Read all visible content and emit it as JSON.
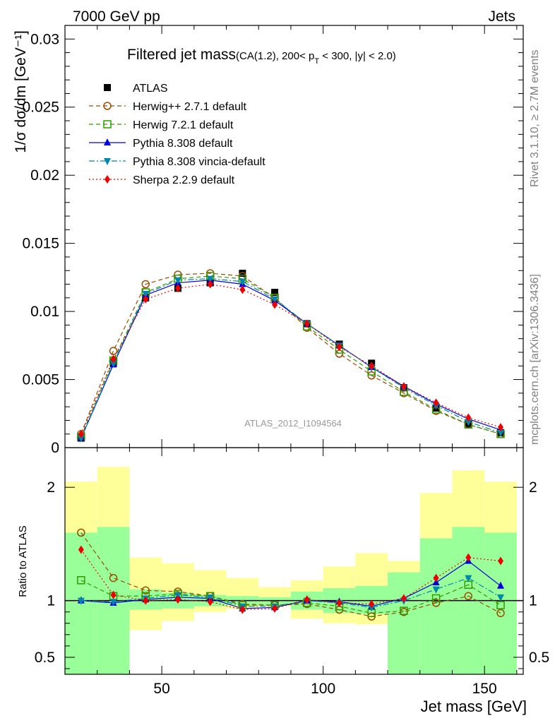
{
  "header": {
    "left": "7000 GeV pp",
    "right": "Jets"
  },
  "side_labels": {
    "rivet": "Rivet 3.1.10, ≥ 2.7M events",
    "mcplots": "mcplots.cern.ch [arXiv:1306.3436]"
  },
  "chart_data": [
    {
      "type": "scatter",
      "title_main": "Filtered jet mass",
      "title_sub_pre": "(CA(1.2), 200< p",
      "title_sub_subscript": "T",
      "title_sub_post": " < 300, |y| < 2.0)",
      "ylabel": "1/σ dσ/dm [GeV⁻¹]",
      "xlabel": "",
      "xlim": [
        20,
        162
      ],
      "ylim": [
        0,
        0.031
      ],
      "yticks": [
        {
          "v": 0,
          "label": "0"
        },
        {
          "v": 0.005,
          "label": "0.005"
        },
        {
          "v": 0.01,
          "label": "0.01"
        },
        {
          "v": 0.015,
          "label": "0.015"
        },
        {
          "v": 0.02,
          "label": "0.02"
        },
        {
          "v": 0.025,
          "label": "0.025"
        },
        {
          "v": 0.03,
          "label": "0.03"
        }
      ],
      "watermark": "ATLAS_2012_I1094564",
      "x": [
        25,
        35,
        45,
        55,
        65,
        75,
        85,
        95,
        105,
        115,
        125,
        135,
        145,
        155
      ],
      "series": [
        {
          "name": "ATLAS",
          "color": "#000000",
          "marker": "square-filled",
          "line": "none",
          "values": [
            0.0007,
            0.0062,
            0.011,
            0.0117,
            0.0121,
            0.0128,
            0.0114,
            0.0091,
            0.0076,
            0.0062,
            0.0044,
            0.0029,
            0.0017,
            0.0011
          ]
        },
        {
          "name": "Herwig++ 2.7.1 default",
          "color": "#994c00",
          "marker": "circle-open",
          "line": "dashed",
          "values": [
            0.001,
            0.0071,
            0.012,
            0.0127,
            0.0128,
            0.0126,
            0.011,
            0.0088,
            0.0069,
            0.0053,
            0.004,
            0.0027,
            0.0017,
            0.001
          ]
        },
        {
          "name": "Herwig 7.2.1 default",
          "color": "#339900",
          "marker": "square-open",
          "line": "dashed",
          "values": [
            0.0008,
            0.0064,
            0.0114,
            0.0124,
            0.0126,
            0.0124,
            0.011,
            0.0089,
            0.0072,
            0.0056,
            0.0041,
            0.0028,
            0.0017,
            0.001
          ]
        },
        {
          "name": "Pythia 8.308 default",
          "color": "#0000dd",
          "marker": "triangle-up",
          "line": "solid",
          "values": [
            0.0007,
            0.0061,
            0.0112,
            0.0121,
            0.0123,
            0.012,
            0.0108,
            0.0091,
            0.0075,
            0.0059,
            0.0045,
            0.0032,
            0.0021,
            0.0013
          ]
        },
        {
          "name": "Pythia 8.308 vincia-default",
          "color": "#0088aa",
          "marker": "triangle-down",
          "line": "dashdot",
          "values": [
            0.0007,
            0.0062,
            0.0113,
            0.0123,
            0.0124,
            0.0122,
            0.0109,
            0.0091,
            0.0075,
            0.0059,
            0.0044,
            0.0031,
            0.0019,
            0.0011
          ]
        },
        {
          "name": "Sherpa 2.2.9 default",
          "color": "#ee0000",
          "marker": "diamond",
          "line": "dotted",
          "values": [
            0.001,
            0.0065,
            0.0109,
            0.0117,
            0.012,
            0.0116,
            0.0105,
            0.0091,
            0.0074,
            0.006,
            0.0045,
            0.0033,
            0.0022,
            0.0015
          ]
        }
      ]
    },
    {
      "type": "scatter",
      "ylabel": "Ratio to ATLAS",
      "xlabel": "Jet mass [GeV]",
      "xlim": [
        20,
        162
      ],
      "ylim": [
        0.35,
        2.35
      ],
      "xticks": [
        {
          "v": 50,
          "label": "50"
        },
        {
          "v": 100,
          "label": "100"
        },
        {
          "v": 150,
          "label": "150"
        }
      ],
      "yticks": [
        {
          "v": 0.5,
          "label": "0.5"
        },
        {
          "v": 1,
          "label": "1"
        },
        {
          "v": 2,
          "label": "2"
        }
      ],
      "bin_edges": [
        20,
        30,
        40,
        50,
        60,
        70,
        80,
        90,
        100,
        110,
        120,
        130,
        140,
        150,
        160
      ],
      "band_green": {
        "lo": [
          0.35,
          0.35,
          0.92,
          0.93,
          0.95,
          0.96,
          0.96,
          0.92,
          0.89,
          0.88,
          0.35,
          0.35,
          0.35,
          0.35
        ],
        "hi": [
          1.6,
          1.65,
          1.1,
          1.07,
          1.05,
          1.04,
          1.03,
          1.08,
          1.11,
          1.13,
          1.25,
          1.55,
          1.65,
          1.6
        ]
      },
      "band_yellow": {
        "lo": [
          0.35,
          0.58,
          0.74,
          0.82,
          0.9,
          0.93,
          0.95,
          0.84,
          0.8,
          0.79,
          0.72,
          0.71,
          0.56,
          0.35
        ],
        "hi": [
          2.05,
          2.18,
          1.38,
          1.33,
          1.27,
          1.2,
          1.12,
          1.18,
          1.3,
          1.42,
          1.35,
          1.95,
          2.15,
          2.05
        ]
      },
      "series": [
        {
          "name": "Herwig++ 2.7.1 default",
          "values": [
            1.6,
            1.2,
            1.09,
            1.08,
            1.04,
            0.97,
            0.96,
            0.97,
            0.92,
            0.86,
            0.9,
            0.98,
            1.04,
            0.89
          ]
        },
        {
          "name": "Herwig 7.2.1 default",
          "values": [
            1.18,
            1.04,
            1.04,
            1.06,
            1.04,
            0.96,
            0.96,
            0.98,
            0.95,
            0.89,
            0.91,
            1.02,
            1.14,
            0.96
          ]
        },
        {
          "name": "Pythia 8.308 default",
          "values": [
            1.0,
            0.98,
            1.01,
            1.03,
            1.02,
            0.93,
            0.94,
            1.0,
            0.99,
            0.95,
            1.02,
            1.16,
            1.35,
            1.13
          ]
        },
        {
          "name": "Pythia 8.308 vincia-default",
          "values": [
            1.0,
            0.99,
            1.02,
            1.05,
            1.03,
            0.95,
            0.95,
            1.0,
            0.98,
            0.94,
            1.0,
            1.1,
            1.2,
            1.03
          ]
        },
        {
          "name": "Sherpa 2.2.9 default",
          "values": [
            1.45,
            1.05,
            1.0,
            1.01,
            0.99,
            0.92,
            0.93,
            1.01,
            0.98,
            0.97,
            1.02,
            1.2,
            1.38,
            1.35
          ]
        }
      ]
    }
  ]
}
